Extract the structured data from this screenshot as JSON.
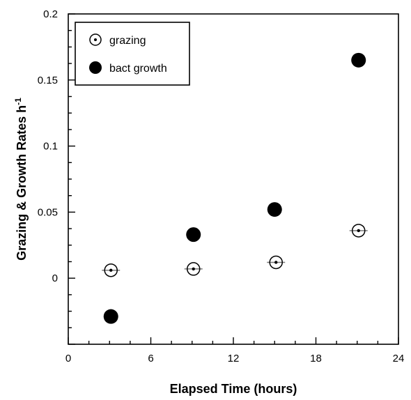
{
  "chart_data": {
    "type": "scatter",
    "title": "",
    "xlabel": "Elapsed Time (hours)",
    "ylabel": "Grazing & Growth Rates h",
    "ylabel_superscript": "-1",
    "xlim": [
      0,
      24
    ],
    "ylim": [
      -0.05,
      0.2
    ],
    "x_ticks": [
      0,
      6,
      12,
      18,
      24
    ],
    "x_tick_labels": [
      "0",
      "6",
      "12",
      "18",
      "24"
    ],
    "y_ticks": [
      0,
      0.05,
      0.1,
      0.15,
      0.2
    ],
    "y_tick_labels": [
      "0",
      "0.05",
      "0.1",
      "0.15",
      "0.2"
    ],
    "grid": false,
    "legend_position": "top-left",
    "series": [
      {
        "name": "grazing",
        "marker": "open-circle-dot",
        "points": [
          {
            "x": 3.1,
            "y": 0.006
          },
          {
            "x": 9.1,
            "y": 0.007
          },
          {
            "x": 15.1,
            "y": 0.012
          },
          {
            "x": 21.1,
            "y": 0.036
          }
        ]
      },
      {
        "name": "bact growth",
        "marker": "filled-circle",
        "points": [
          {
            "x": 3.1,
            "y": -0.029
          },
          {
            "x": 9.1,
            "y": 0.033
          },
          {
            "x": 15.0,
            "y": 0.052
          },
          {
            "x": 21.1,
            "y": 0.165
          }
        ]
      }
    ]
  }
}
